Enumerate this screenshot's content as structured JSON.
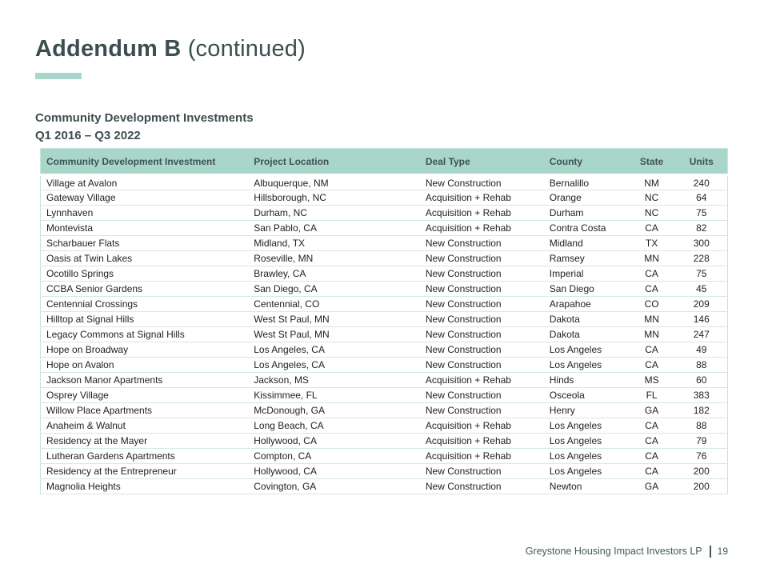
{
  "header": {
    "title_bold": "Addendum B",
    "title_continued": " (continued)",
    "subtitle_line1": "Community Development Investments",
    "subtitle_line2": "Q1 2016 – Q3 2022"
  },
  "colors": {
    "accent_teal": "#a9d6cb",
    "dark_slate": "#3d4e50",
    "row_border": "#d4e9e4"
  },
  "table": {
    "headers": [
      "Community Development Investment",
      "Project Location",
      "Deal Type",
      "County",
      "State",
      "Units"
    ],
    "rows": [
      [
        "Village at Avalon",
        "Albuquerque, NM",
        "New Construction",
        "Bernalillo",
        "NM",
        "240"
      ],
      [
        "Gateway Village",
        "Hillsborough, NC",
        "Acquisition + Rehab",
        "Orange",
        "NC",
        "64"
      ],
      [
        "Lynnhaven",
        "Durham, NC",
        "Acquisition + Rehab",
        "Durham",
        "NC",
        "75"
      ],
      [
        "Montevista",
        "San Pablo, CA",
        "Acquisition + Rehab",
        "Contra Costa",
        "CA",
        "82"
      ],
      [
        "Scharbauer Flats",
        "Midland, TX",
        "New Construction",
        "Midland",
        "TX",
        "300"
      ],
      [
        "Oasis at Twin Lakes",
        "Roseville, MN",
        "New Construction",
        "Ramsey",
        "MN",
        "228"
      ],
      [
        "Ocotillo Springs",
        "Brawley, CA",
        "New Construction",
        "Imperial",
        "CA",
        "75"
      ],
      [
        "CCBA Senior Gardens",
        "San Diego, CA",
        "New Construction",
        "San Diego",
        "CA",
        "45"
      ],
      [
        "Centennial Crossings",
        "Centennial, CO",
        "New Construction",
        "Arapahoe",
        "CO",
        "209"
      ],
      [
        "Hilltop at Signal Hills",
        "West St Paul, MN",
        "New Construction",
        "Dakota",
        "MN",
        "146"
      ],
      [
        "Legacy Commons at Signal Hills",
        "West St Paul, MN",
        "New Construction",
        "Dakota",
        "MN",
        "247"
      ],
      [
        "Hope on Broadway",
        "Los Angeles, CA",
        "New Construction",
        "Los Angeles",
        "CA",
        "49"
      ],
      [
        "Hope on Avalon",
        "Los Angeles, CA",
        "New Construction",
        "Los Angeles",
        "CA",
        "88"
      ],
      [
        "Jackson Manor Apartments",
        "Jackson, MS",
        "Acquisition + Rehab",
        "Hinds",
        "MS",
        "60"
      ],
      [
        "Osprey Village",
        "Kissimmee, FL",
        "New Construction",
        "Osceola",
        "FL",
        "383"
      ],
      [
        "Willow Place Apartments",
        "McDonough, GA",
        "New Construction",
        "Henry",
        "GA",
        "182"
      ],
      [
        "Anaheim & Walnut",
        "Long Beach, CA",
        "Acquisition + Rehab",
        "Los Angeles",
        "CA",
        "88"
      ],
      [
        "Residency at the Mayer",
        "Hollywood, CA",
        "Acquisition + Rehab",
        "Los Angeles",
        "CA",
        "79"
      ],
      [
        "Lutheran Gardens Apartments",
        "Compton, CA",
        "Acquisition + Rehab",
        "Los Angeles",
        "CA",
        "76"
      ],
      [
        "Residency at the Entrepreneur",
        "Hollywood, CA",
        "New Construction",
        "Los Angeles",
        "CA",
        "200"
      ],
      [
        "Magnolia Heights",
        "Covington, GA",
        "New Construction",
        "Newton",
        "GA",
        "200"
      ]
    ]
  },
  "footer": {
    "company": "Greystone Housing Impact Investors LP",
    "page": "19"
  }
}
